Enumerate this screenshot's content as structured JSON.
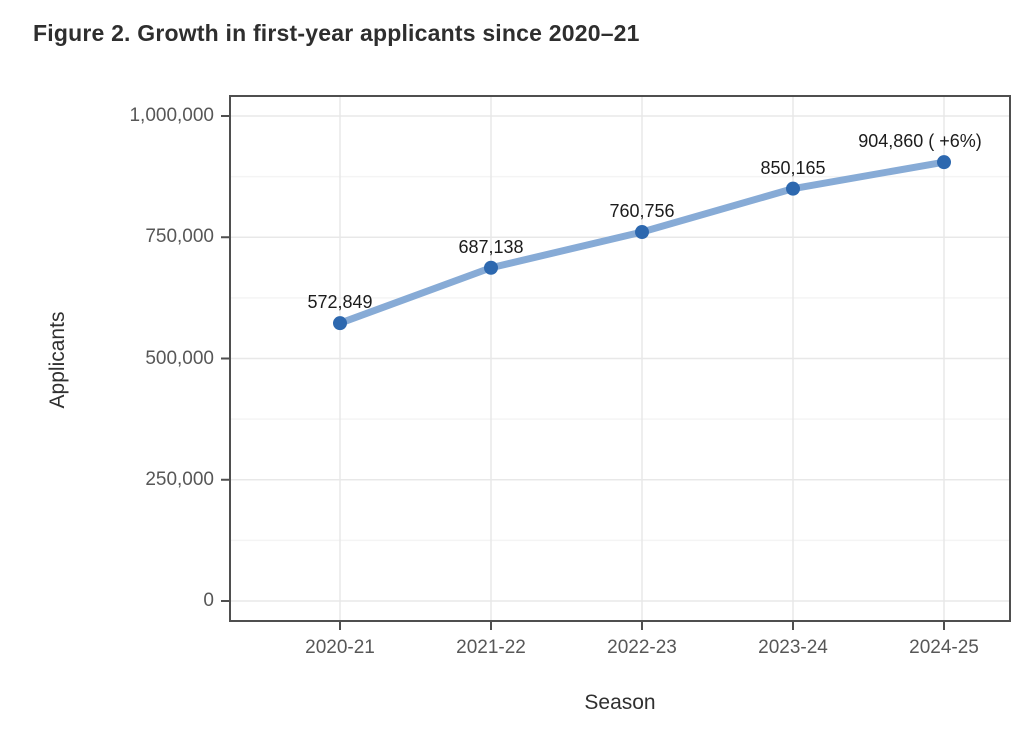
{
  "figure": {
    "title": "Figure 2. Growth in first-year applicants since 2020–21"
  },
  "chart_data": {
    "type": "line",
    "title": "Figure 2. Growth in first-year applicants since 2020–21",
    "categories": [
      "2020-21",
      "2021-22",
      "2022-23",
      "2023-24",
      "2024-25"
    ],
    "series": [
      {
        "name": "Applicants",
        "values": [
          572849,
          687138,
          760756,
          850165,
          904860
        ]
      }
    ],
    "point_labels": [
      "572,849",
      "687,138",
      "760,756",
      "850,165",
      "904,860 ( +6%)"
    ],
    "xlabel": "Season",
    "ylabel": "Applicants",
    "ylim": [
      0,
      1000000
    ],
    "yticks": [
      0,
      250000,
      500000,
      750000,
      1000000
    ],
    "ytick_labels": [
      "0",
      "250,000",
      "500,000",
      "750,000",
      "1,000,000"
    ],
    "grid": {
      "horizontal": "major+minor",
      "vertical": "major"
    },
    "legend": "none",
    "colors": {
      "line": "#87abd6",
      "point": "#2d68af",
      "grid_major": "#e8e8e8",
      "grid_minor": "#f4f4f4",
      "panel_border": "#4f4f4f",
      "tick_text": "#575757",
      "label_text": "#1c1c1c",
      "title_text": "#2e2e2e"
    }
  }
}
